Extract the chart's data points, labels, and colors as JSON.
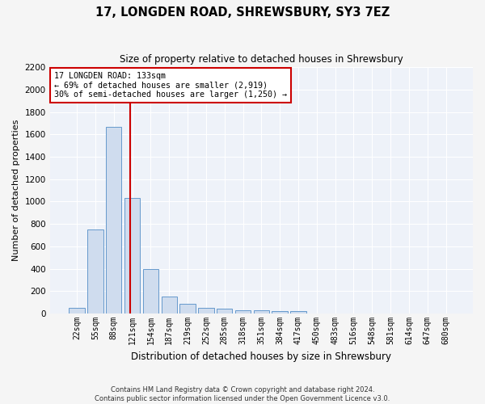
{
  "title": "17, LONGDEN ROAD, SHREWSBURY, SY3 7EZ",
  "subtitle": "Size of property relative to detached houses in Shrewsbury",
  "xlabel": "Distribution of detached houses by size in Shrewsbury",
  "ylabel": "Number of detached properties",
  "footer_line1": "Contains HM Land Registry data © Crown copyright and database right 2024.",
  "footer_line2": "Contains public sector information licensed under the Open Government Licence v3.0.",
  "bar_labels": [
    "22sqm",
    "55sqm",
    "88sqm",
    "121sqm",
    "154sqm",
    "187sqm",
    "219sqm",
    "252sqm",
    "285sqm",
    "318sqm",
    "351sqm",
    "384sqm",
    "417sqm",
    "450sqm",
    "483sqm",
    "516sqm",
    "548sqm",
    "581sqm",
    "614sqm",
    "647sqm",
    "680sqm"
  ],
  "bar_values": [
    50,
    750,
    1670,
    1035,
    400,
    150,
    85,
    50,
    42,
    32,
    28,
    20,
    20,
    0,
    0,
    0,
    0,
    0,
    0,
    0,
    0
  ],
  "bar_color": "#cfdcee",
  "bar_edge_color": "#6699cc",
  "vline_color": "#cc0000",
  "ylim_max": 2200,
  "yticks": [
    0,
    200,
    400,
    600,
    800,
    1000,
    1200,
    1400,
    1600,
    1800,
    2000,
    2200
  ],
  "annotation_line1": "17 LONGDEN ROAD: 133sqm",
  "annotation_line2": "← 69% of detached houses are smaller (2,919)",
  "annotation_line3": "30% of semi-detached houses are larger (1,250) →",
  "annotation_box_color": "#ffffff",
  "annotation_box_edge": "#cc0000",
  "bg_color": "#eef2f9",
  "grid_color": "#ffffff",
  "fig_bg_color": "#f5f5f5"
}
